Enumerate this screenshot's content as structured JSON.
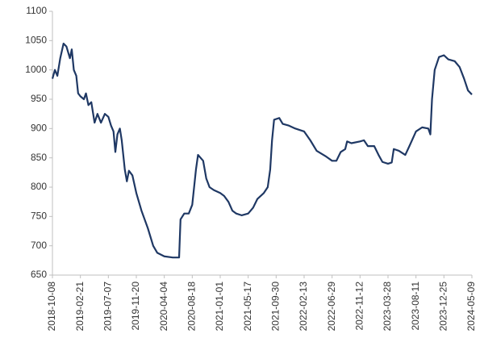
{
  "chart_data": {
    "type": "line",
    "x": [
      "2018-10-08",
      "2018-10-20",
      "2018-11-01",
      "2018-11-15",
      "2018-12-01",
      "2018-12-15",
      "2019-01-01",
      "2019-01-10",
      "2019-01-20",
      "2019-02-01",
      "2019-02-10",
      "2019-02-21",
      "2019-03-10",
      "2019-03-20",
      "2019-04-01",
      "2019-04-15",
      "2019-05-01",
      "2019-05-15",
      "2019-06-01",
      "2019-06-20",
      "2019-07-07",
      "2019-07-20",
      "2019-08-01",
      "2019-08-10",
      "2019-08-20",
      "2019-09-01",
      "2019-09-10",
      "2019-09-25",
      "2019-10-05",
      "2019-10-15",
      "2019-11-01",
      "2019-11-20",
      "2019-12-15",
      "2020-01-15",
      "2020-02-10",
      "2020-03-01",
      "2020-04-04",
      "2020-05-15",
      "2020-06-15",
      "2020-06-22",
      "2020-07-10",
      "2020-08-01",
      "2020-08-18",
      "2020-09-05",
      "2020-09-15",
      "2020-10-10",
      "2020-10-25",
      "2020-11-10",
      "2020-12-01",
      "2021-01-01",
      "2021-01-20",
      "2021-02-10",
      "2021-03-01",
      "2021-03-20",
      "2021-04-15",
      "2021-05-17",
      "2021-06-10",
      "2021-07-01",
      "2021-08-01",
      "2021-08-20",
      "2021-09-01",
      "2021-09-10",
      "2021-09-20",
      "2021-10-15",
      "2021-11-01",
      "2021-12-01",
      "2022-01-01",
      "2022-02-13",
      "2022-03-15",
      "2022-04-15",
      "2022-06-01",
      "2022-06-29",
      "2022-07-20",
      "2022-08-10",
      "2022-09-01",
      "2022-09-10",
      "2022-10-01",
      "2022-11-12",
      "2022-12-01",
      "2022-12-20",
      "2023-01-20",
      "2023-02-10",
      "2023-03-01",
      "2023-03-28",
      "2023-04-15",
      "2023-04-25",
      "2023-05-20",
      "2023-06-20",
      "2023-07-10",
      "2023-08-11",
      "2023-09-10",
      "2023-10-10",
      "2023-10-20",
      "2023-10-28",
      "2023-11-10",
      "2023-12-01",
      "2023-12-25",
      "2024-01-15",
      "2024-02-15",
      "2024-03-10",
      "2024-04-01",
      "2024-04-20",
      "2024-05-09"
    ],
    "series": [
      {
        "color": "#1f3864",
        "values": [
          985,
          1000,
          990,
          1020,
          1045,
          1040,
          1020,
          1035,
          1000,
          990,
          960,
          955,
          950,
          960,
          940,
          945,
          910,
          925,
          910,
          925,
          920,
          905,
          895,
          860,
          890,
          900,
          880,
          830,
          810,
          828,
          820,
          790,
          760,
          730,
          700,
          688,
          682,
          680,
          680,
          745,
          755,
          755,
          770,
          830,
          855,
          845,
          815,
          800,
          795,
          790,
          785,
          775,
          760,
          755,
          752,
          755,
          765,
          780,
          790,
          800,
          830,
          880,
          915,
          918,
          908,
          905,
          900,
          895,
          880,
          862,
          852,
          845,
          845,
          860,
          865,
          878,
          875,
          878,
          880,
          870,
          870,
          855,
          843,
          840,
          842,
          865,
          862,
          855,
          870,
          895,
          902,
          900,
          890,
          950,
          1000,
          1022,
          1025,
          1018,
          1015,
          1005,
          985,
          965,
          958
        ]
      }
    ],
    "xlim": [
      "2018-10-08",
      "2024-05-09"
    ],
    "xticks": [
      "2018-10-08",
      "2019-02-21",
      "2019-07-07",
      "2019-11-20",
      "2020-04-04",
      "2020-08-18",
      "2021-01-01",
      "2021-05-17",
      "2021-09-30",
      "2022-02-13",
      "2022-06-29",
      "2022-11-12",
      "2023-03-28",
      "2023-08-11",
      "2023-12-25",
      "2024-05-09"
    ],
    "ylim": [
      650,
      1100
    ],
    "yticks": [
      650,
      700,
      750,
      800,
      850,
      900,
      950,
      1000,
      1050,
      1100
    ]
  }
}
